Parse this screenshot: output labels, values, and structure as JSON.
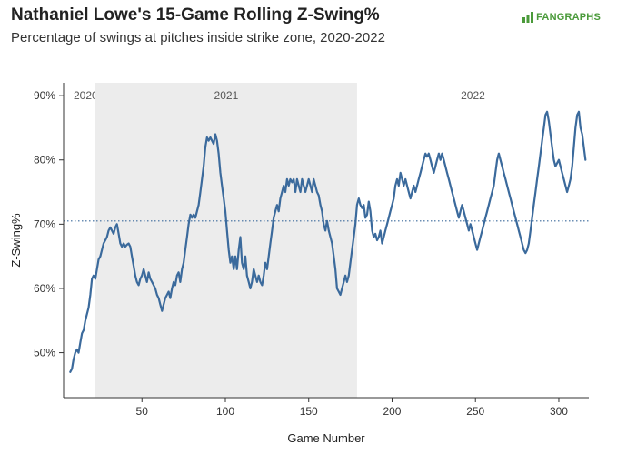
{
  "title": "Nathaniel Lowe's 15-Game Rolling Z-Swing%",
  "subtitle": "Percentage of swings at pitches inside strike zone, 2020-2022",
  "brand": "FANGRAPHS",
  "colors": {
    "line": "#3b6a9c",
    "shade": "#ececec",
    "reference": "#3b6a9c",
    "brand": "#4a9a3a"
  },
  "chart_data": {
    "type": "line",
    "xlabel": "Game Number",
    "ylabel": "Z-Swing%",
    "xlim": [
      3,
      318
    ],
    "ylim": [
      43,
      92
    ],
    "x_ticks": [
      50,
      100,
      150,
      200,
      250,
      300
    ],
    "x_tick_labels": [
      "50",
      "100",
      "150",
      "200",
      "250",
      "300"
    ],
    "y_ticks": [
      50,
      60,
      70,
      80,
      90
    ],
    "y_tick_labels": [
      "50%",
      "60%",
      "70%",
      "80%",
      "90%"
    ],
    "reference_line": {
      "y": 70.5,
      "style": "dotted"
    },
    "seasons": [
      {
        "label": "2020",
        "start": 3,
        "end": 22,
        "shaded": false
      },
      {
        "label": "2021",
        "start": 22,
        "end": 179,
        "shaded": true
      },
      {
        "label": "2022",
        "start": 179,
        "end": 318,
        "shaded": false
      }
    ],
    "grid": false,
    "series": [
      {
        "points": [
          [
            7,
            47
          ],
          [
            8,
            47.5
          ],
          [
            9,
            49
          ],
          [
            10,
            50
          ],
          [
            11,
            50.5
          ],
          [
            12,
            50
          ],
          [
            13,
            51.5
          ],
          [
            14,
            53
          ],
          [
            15,
            53.5
          ],
          [
            16,
            55
          ],
          [
            17,
            56
          ],
          [
            18,
            57
          ],
          [
            19,
            59
          ],
          [
            20,
            61.5
          ],
          [
            21,
            62
          ],
          [
            22,
            61.5
          ],
          [
            23,
            63
          ],
          [
            24,
            64.5
          ],
          [
            25,
            65
          ],
          [
            26,
            66
          ],
          [
            27,
            67
          ],
          [
            28,
            67.5
          ],
          [
            29,
            68
          ],
          [
            30,
            69
          ],
          [
            31,
            69.5
          ],
          [
            32,
            69
          ],
          [
            33,
            68.5
          ],
          [
            34,
            69.5
          ],
          [
            35,
            70
          ],
          [
            36,
            68.5
          ],
          [
            37,
            67
          ],
          [
            38,
            66.5
          ],
          [
            39,
            67
          ],
          [
            40,
            66.5
          ],
          [
            41,
            66.8
          ],
          [
            42,
            67
          ],
          [
            43,
            66.5
          ],
          [
            44,
            65
          ],
          [
            45,
            63.5
          ],
          [
            46,
            62
          ],
          [
            47,
            61
          ],
          [
            48,
            60.5
          ],
          [
            49,
            61.5
          ],
          [
            50,
            62
          ],
          [
            51,
            63
          ],
          [
            52,
            62
          ],
          [
            53,
            61
          ],
          [
            54,
            62.5
          ],
          [
            55,
            61.5
          ],
          [
            56,
            61
          ],
          [
            57,
            60.5
          ],
          [
            58,
            60
          ],
          [
            59,
            59
          ],
          [
            60,
            58.5
          ],
          [
            61,
            57.5
          ],
          [
            62,
            56.5
          ],
          [
            63,
            57.5
          ],
          [
            64,
            58.5
          ],
          [
            65,
            59
          ],
          [
            66,
            59.5
          ],
          [
            67,
            58.5
          ],
          [
            68,
            60
          ],
          [
            69,
            61
          ],
          [
            70,
            60.5
          ],
          [
            71,
            62
          ],
          [
            72,
            62.5
          ],
          [
            73,
            61
          ],
          [
            74,
            63
          ],
          [
            75,
            64
          ],
          [
            76,
            66
          ],
          [
            77,
            68
          ],
          [
            78,
            70
          ],
          [
            79,
            71.5
          ],
          [
            80,
            71
          ],
          [
            81,
            71.5
          ],
          [
            82,
            71
          ],
          [
            83,
            72
          ],
          [
            84,
            73
          ],
          [
            85,
            75
          ],
          [
            86,
            77
          ],
          [
            87,
            79
          ],
          [
            88,
            82
          ],
          [
            89,
            83.5
          ],
          [
            90,
            83
          ],
          [
            91,
            83.5
          ],
          [
            92,
            83
          ],
          [
            93,
            82.5
          ],
          [
            94,
            84
          ],
          [
            95,
            83
          ],
          [
            96,
            81
          ],
          [
            97,
            78
          ],
          [
            98,
            76
          ],
          [
            99,
            74
          ],
          [
            100,
            72
          ],
          [
            101,
            69
          ],
          [
            102,
            66
          ],
          [
            103,
            64
          ],
          [
            104,
            65
          ],
          [
            105,
            63
          ],
          [
            106,
            65
          ],
          [
            107,
            63
          ],
          [
            108,
            66
          ],
          [
            109,
            68
          ],
          [
            110,
            64
          ],
          [
            111,
            63
          ],
          [
            112,
            65
          ],
          [
            113,
            62
          ],
          [
            114,
            61
          ],
          [
            115,
            60
          ],
          [
            116,
            61
          ],
          [
            117,
            63
          ],
          [
            118,
            62
          ],
          [
            119,
            61
          ],
          [
            120,
            62
          ],
          [
            121,
            61
          ],
          [
            122,
            60.5
          ],
          [
            123,
            62
          ],
          [
            124,
            64
          ],
          [
            125,
            63
          ],
          [
            126,
            65
          ],
          [
            127,
            67
          ],
          [
            128,
            69
          ],
          [
            129,
            71
          ],
          [
            130,
            72
          ],
          [
            131,
            73
          ],
          [
            132,
            72
          ],
          [
            133,
            74
          ],
          [
            134,
            75
          ],
          [
            135,
            76
          ],
          [
            136,
            75
          ],
          [
            137,
            77
          ],
          [
            138,
            76
          ],
          [
            139,
            77
          ],
          [
            140,
            76.5
          ],
          [
            141,
            77
          ],
          [
            142,
            75
          ],
          [
            143,
            77
          ],
          [
            144,
            76
          ],
          [
            145,
            75
          ],
          [
            146,
            77
          ],
          [
            147,
            76
          ],
          [
            148,
            75
          ],
          [
            149,
            76
          ],
          [
            150,
            77
          ],
          [
            151,
            76
          ],
          [
            152,
            75
          ],
          [
            153,
            77
          ],
          [
            154,
            76
          ],
          [
            155,
            75
          ],
          [
            156,
            74.5
          ],
          [
            157,
            73
          ],
          [
            158,
            72
          ],
          [
            159,
            70
          ],
          [
            160,
            69
          ],
          [
            161,
            70.5
          ],
          [
            162,
            69
          ],
          [
            163,
            68
          ],
          [
            164,
            67
          ],
          [
            165,
            65
          ],
          [
            166,
            63
          ],
          [
            167,
            60
          ],
          [
            168,
            59.5
          ],
          [
            169,
            59
          ],
          [
            170,
            60
          ],
          [
            171,
            61
          ],
          [
            172,
            62
          ],
          [
            173,
            61
          ],
          [
            174,
            62
          ],
          [
            175,
            64
          ],
          [
            176,
            66
          ],
          [
            177,
            68
          ],
          [
            178,
            70
          ],
          [
            179,
            73
          ],
          [
            180,
            74
          ],
          [
            181,
            73
          ],
          [
            182,
            72.5
          ],
          [
            183,
            73
          ],
          [
            184,
            71
          ],
          [
            185,
            71.5
          ],
          [
            186,
            73.5
          ],
          [
            187,
            72
          ],
          [
            188,
            69
          ],
          [
            189,
            68
          ],
          [
            190,
            68.5
          ],
          [
            191,
            67.5
          ],
          [
            192,
            68
          ],
          [
            193,
            69
          ],
          [
            194,
            67
          ],
          [
            195,
            68
          ],
          [
            196,
            69
          ],
          [
            197,
            70
          ],
          [
            198,
            71
          ],
          [
            199,
            72
          ],
          [
            200,
            73
          ],
          [
            201,
            74
          ],
          [
            202,
            76
          ],
          [
            203,
            77
          ],
          [
            204,
            76
          ],
          [
            205,
            78
          ],
          [
            206,
            77
          ],
          [
            207,
            76
          ],
          [
            208,
            77
          ],
          [
            209,
            76
          ],
          [
            210,
            75
          ],
          [
            211,
            74
          ],
          [
            212,
            75
          ],
          [
            213,
            76
          ],
          [
            214,
            75
          ],
          [
            215,
            76
          ],
          [
            216,
            77
          ],
          [
            217,
            78
          ],
          [
            218,
            79
          ],
          [
            219,
            80
          ],
          [
            220,
            81
          ],
          [
            221,
            80.5
          ],
          [
            222,
            81
          ],
          [
            223,
            80
          ],
          [
            224,
            79
          ],
          [
            225,
            78
          ],
          [
            226,
            79
          ],
          [
            227,
            80
          ],
          [
            228,
            81
          ],
          [
            229,
            80
          ],
          [
            230,
            81
          ],
          [
            231,
            80
          ],
          [
            232,
            79
          ],
          [
            233,
            78
          ],
          [
            234,
            77
          ],
          [
            235,
            76
          ],
          [
            236,
            75
          ],
          [
            237,
            74
          ],
          [
            238,
            73
          ],
          [
            239,
            72
          ],
          [
            240,
            71
          ],
          [
            241,
            72
          ],
          [
            242,
            73
          ],
          [
            243,
            72
          ],
          [
            244,
            71
          ],
          [
            245,
            70
          ],
          [
            246,
            69
          ],
          [
            247,
            70
          ],
          [
            248,
            69
          ],
          [
            249,
            68
          ],
          [
            250,
            67
          ],
          [
            251,
            66
          ],
          [
            252,
            67
          ],
          [
            253,
            68
          ],
          [
            254,
            69
          ],
          [
            255,
            70
          ],
          [
            256,
            71
          ],
          [
            257,
            72
          ],
          [
            258,
            73
          ],
          [
            259,
            74
          ],
          [
            260,
            75
          ],
          [
            261,
            76
          ],
          [
            262,
            78
          ],
          [
            263,
            80
          ],
          [
            264,
            81
          ],
          [
            265,
            80
          ],
          [
            266,
            79
          ],
          [
            267,
            78
          ],
          [
            268,
            77
          ],
          [
            269,
            76
          ],
          [
            270,
            75
          ],
          [
            271,
            74
          ],
          [
            272,
            73
          ],
          [
            273,
            72
          ],
          [
            274,
            71
          ],
          [
            275,
            70
          ],
          [
            276,
            69
          ],
          [
            277,
            68
          ],
          [
            278,
            67
          ],
          [
            279,
            66
          ],
          [
            280,
            65.5
          ],
          [
            281,
            66
          ],
          [
            282,
            67
          ],
          [
            283,
            69
          ],
          [
            284,
            71
          ],
          [
            285,
            73
          ],
          [
            286,
            75
          ],
          [
            287,
            77
          ],
          [
            288,
            79
          ],
          [
            289,
            81
          ],
          [
            290,
            83
          ],
          [
            291,
            85
          ],
          [
            292,
            87
          ],
          [
            293,
            87.5
          ],
          [
            294,
            86
          ],
          [
            295,
            84
          ],
          [
            296,
            82
          ],
          [
            297,
            80
          ],
          [
            298,
            79
          ],
          [
            299,
            79.5
          ],
          [
            300,
            80
          ],
          [
            301,
            79
          ],
          [
            302,
            78
          ],
          [
            303,
            77
          ],
          [
            304,
            76
          ],
          [
            305,
            75
          ],
          [
            306,
            76
          ],
          [
            307,
            77
          ],
          [
            308,
            79
          ],
          [
            309,
            82
          ],
          [
            310,
            85
          ],
          [
            311,
            87
          ],
          [
            312,
            87.5
          ],
          [
            313,
            85
          ],
          [
            314,
            84
          ],
          [
            315,
            82
          ],
          [
            316,
            80
          ]
        ]
      }
    ]
  }
}
